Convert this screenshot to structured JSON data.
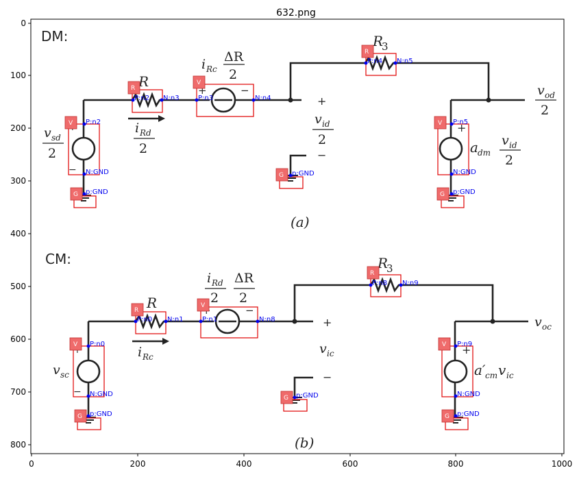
{
  "figure": {
    "title": "632.png",
    "x_ticks": [
      "0",
      "200",
      "400",
      "600",
      "800",
      "1000"
    ],
    "y_ticks": [
      "0",
      "100",
      "200",
      "300",
      "400",
      "500",
      "600",
      "700",
      "800"
    ]
  },
  "panel_a": {
    "header": "DM:",
    "caption": "(a)",
    "labels": {
      "vsd_num": "v",
      "vsd_sub": "sd",
      "vsd_den": "2",
      "R": "R",
      "iRd_num": "i",
      "iRd_sub": "Rd",
      "iRd_den": "2",
      "iRc": "i",
      "iRc_sub": "Rc",
      "dR_num": "ΔR",
      "dR_den": "2",
      "vid_num": "v",
      "vid_sub": "id",
      "vid_den": "2",
      "R3": "R",
      "R3_sub": "3",
      "vod_num": "v",
      "vod_sub": "od",
      "vod_den": "2",
      "adm": "a",
      "adm_sub": "dm",
      "vid2_num": "v",
      "vid2_sub": "id",
      "vid2_den": "2",
      "plus": "+",
      "minus": "−"
    },
    "nodes": [
      "P:n2",
      "N:GND",
      "p:GND",
      "P:n2",
      "N:n3",
      "P:n3",
      "N:n4",
      "P:n4",
      "N:n5",
      "p:GND",
      "P:n5",
      "N:GND",
      "p:GND"
    ]
  },
  "panel_b": {
    "header": "CM:",
    "caption": "(b)",
    "labels": {
      "vsc": "v",
      "vsc_sub": "sc",
      "R": "R",
      "iRc": "i",
      "iRc_sub": "Rc",
      "iRd_num": "i",
      "iRd_sub": "Rd",
      "iRd_den": "2",
      "dR_num": "ΔR",
      "dR_den": "2",
      "vic": "v",
      "vic_sub": "ic",
      "R3": "R",
      "R3_sub": "3",
      "voc": "v",
      "voc_sub": "oc",
      "acm": "a′",
      "acm_sub": "cm",
      "acm_v": "v",
      "acm_vsub": "ic",
      "plus": "+",
      "minus": "−"
    },
    "nodes": [
      "P:n0",
      "N:GND",
      "p:GND",
      "P:n0",
      "N:n1",
      "P:n1",
      "N:n8",
      "P:n8",
      "N:n9",
      "p:GND",
      "P:n9",
      "N:GND",
      "p:GND"
    ]
  },
  "badges": {
    "V": "V",
    "R": "R",
    "G": "G"
  }
}
